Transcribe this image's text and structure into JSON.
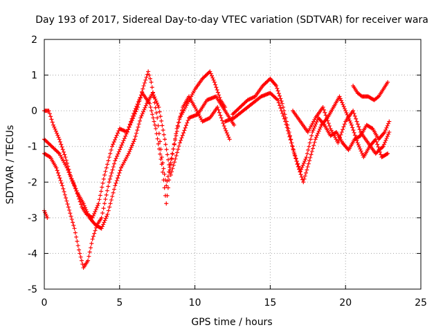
{
  "chart_data": {
    "type": "scatter",
    "title": "Day 193 of 2017, Sidereal Day-to-day VTEC variation (SDTVAR) for receiver wara",
    "xlabel": "GPS time / hours",
    "ylabel": "SDTVAR / TECUs",
    "xlim": [
      0,
      25
    ],
    "ylim": [
      -5,
      2
    ],
    "xticks": [
      "0",
      "5",
      "10",
      "15",
      "20",
      "25"
    ],
    "yticks": [
      "-5",
      "-4",
      "-3",
      "-2",
      "-1",
      "0",
      "1",
      "2"
    ],
    "grid": true,
    "marker": "+",
    "color": "#ff0000",
    "series": [
      {
        "x": [
          0.0,
          0.5,
          1.0,
          1.5,
          2.0,
          2.5,
          2.8,
          3.2,
          3.6,
          4.0,
          4.5,
          5.0,
          5.5,
          6.0,
          6.5,
          7.0,
          7.4,
          7.8,
          8.1,
          8.4,
          8.8,
          9.2,
          9.6,
          10.0,
          10.5,
          11.0,
          11.5,
          12.0,
          12.3
        ],
        "y": [
          -0.8,
          -1.0,
          -1.2,
          -1.6,
          -2.1,
          -2.7,
          -2.9,
          -3.0,
          -2.6,
          -1.8,
          -1.0,
          -0.5,
          -0.6,
          0.0,
          0.5,
          0.2,
          -0.5,
          -1.5,
          -2.6,
          -1.5,
          -0.5,
          0.1,
          0.4,
          0.1,
          -0.3,
          -0.2,
          0.1,
          -0.5,
          -0.8
        ]
      },
      {
        "x": [
          0.0,
          0.4,
          0.8,
          1.2,
          1.6,
          2.0,
          2.3,
          2.6,
          2.9,
          3.2,
          3.5,
          3.8,
          4.0,
          4.3,
          4.7,
          5.2,
          5.7,
          6.2,
          6.6,
          6.9,
          7.1,
          7.5,
          7.8,
          8.1,
          8.5,
          9.0,
          9.5,
          10.0,
          10.5,
          11.0,
          11.3,
          11.7,
          12.0
        ],
        "y": [
          -1.2,
          -1.3,
          -1.6,
          -2.1,
          -2.7,
          -3.3,
          -3.9,
          -4.4,
          -4.2,
          -3.6,
          -3.2,
          -3.0,
          -2.6,
          -2.0,
          -1.4,
          -0.9,
          -0.4,
          0.1,
          0.7,
          1.1,
          0.8,
          -0.2,
          -1.3,
          -2.1,
          -1.2,
          -0.2,
          0.2,
          0.6,
          0.9,
          1.1,
          0.8,
          0.3,
          0.1
        ]
      },
      {
        "x": [
          0.0,
          0.3,
          0.6,
          1.0,
          1.4,
          1.8,
          2.2,
          2.6,
          3.0,
          3.4,
          3.8,
          4.2,
          4.7,
          5.1,
          5.6,
          6.0,
          6.4,
          6.8,
          7.2,
          7.6,
          8.0,
          8.4,
          9.0,
          9.6,
          10.2,
          10.8,
          11.4,
          12.0,
          12.6
        ],
        "y": [
          0.0,
          0.0,
          -0.4,
          -0.8,
          -1.3,
          -1.9,
          -2.3,
          -2.6,
          -3.0,
          -3.2,
          -3.3,
          -2.9,
          -2.1,
          -1.6,
          -1.2,
          -0.8,
          -0.2,
          0.2,
          0.5,
          0.1,
          -0.8,
          -1.8,
          -0.9,
          -0.2,
          -0.1,
          0.3,
          0.4,
          0.0,
          -0.4
        ]
      },
      {
        "x": [
          0.0,
          0.1,
          0.2
        ],
        "y": [
          -2.8,
          -2.9,
          -3.0
        ]
      },
      {
        "x": [
          12.5,
          13.0,
          13.5,
          14.0,
          14.5,
          15.0,
          15.4,
          15.8,
          16.2,
          16.6,
          17.0,
          17.4,
          17.8,
          18.2,
          18.6,
          19.0,
          19.4,
          19.8,
          20.2,
          20.6,
          21.0,
          21.4,
          21.8,
          22.2,
          22.6,
          22.9
        ],
        "y": [
          -0.1,
          0.1,
          0.3,
          0.4,
          0.7,
          0.9,
          0.7,
          0.2,
          -0.5,
          -1.2,
          -1.7,
          -1.3,
          -0.6,
          -0.2,
          -0.4,
          -0.7,
          -0.6,
          -0.9,
          -1.1,
          -0.8,
          -0.7,
          -0.4,
          -0.5,
          -0.8,
          -0.6,
          -0.3
        ]
      },
      {
        "x": [
          12.0,
          12.6,
          13.2,
          13.8,
          14.4,
          15.0,
          15.5,
          16.0,
          16.4,
          16.8,
          17.2,
          17.6,
          18.0,
          18.4,
          18.8,
          19.2,
          19.6,
          20.0,
          20.4,
          20.8,
          21.2,
          21.6,
          22.0,
          22.4,
          22.8
        ],
        "y": [
          -0.3,
          -0.2,
          0.0,
          0.2,
          0.4,
          0.5,
          0.3,
          -0.3,
          -0.9,
          -1.5,
          -2.0,
          -1.4,
          -0.8,
          -0.4,
          -0.2,
          0.1,
          0.4,
          0.0,
          -0.4,
          -0.9,
          -1.3,
          -1.0,
          -0.8,
          -1.3,
          -1.2
        ]
      },
      {
        "x": [
          16.5,
          17.0,
          17.5,
          18.0,
          18.5,
          19.0,
          19.5,
          20.0,
          20.5,
          21.0,
          21.5,
          22.0,
          22.5,
          22.9
        ],
        "y": [
          0.0,
          -0.3,
          -0.6,
          -0.2,
          0.1,
          -0.5,
          -0.9,
          -0.3,
          0.0,
          -0.6,
          -0.9,
          -1.2,
          -1.0,
          -0.6
        ]
      },
      {
        "x": [
          20.5,
          20.8,
          21.1,
          21.5,
          21.9,
          22.2,
          22.5,
          22.8
        ],
        "y": [
          0.7,
          0.5,
          0.4,
          0.4,
          0.3,
          0.4,
          0.6,
          0.8
        ]
      }
    ]
  }
}
